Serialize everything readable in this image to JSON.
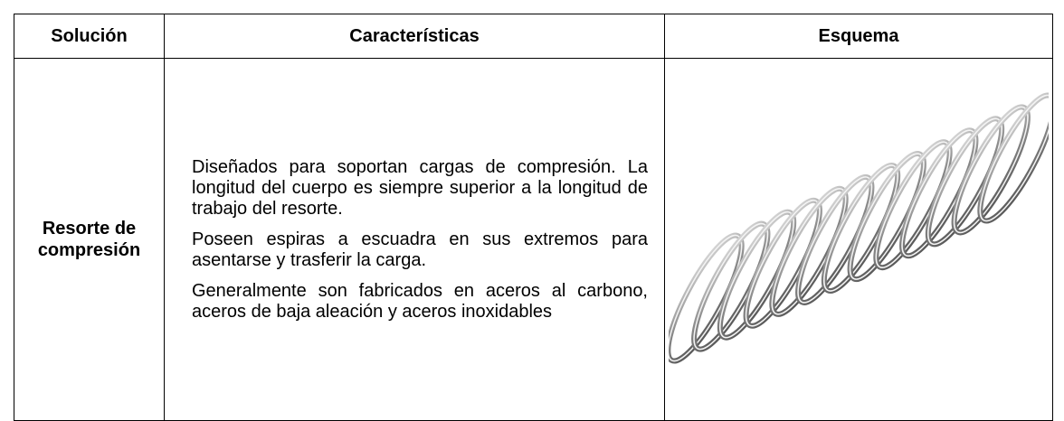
{
  "header": {
    "columns": [
      "Solución",
      "Características",
      "Esquema"
    ]
  },
  "table": {
    "rows": [
      [
        "Resorte de compresión",
        [
          "Diseñados para soportan cargas de compresión. La longitud del cuerpo es siempre superior a la longitud de trabajo del resorte.",
          "Poseen espiras a escuadra en sus extremos para asentarse y trasferir la carga.",
          "Generalmente son fabricados en aceros al carbono, aceros de baja aleación y aceros inoxidables"
        ]
      ]
    ]
  }
}
